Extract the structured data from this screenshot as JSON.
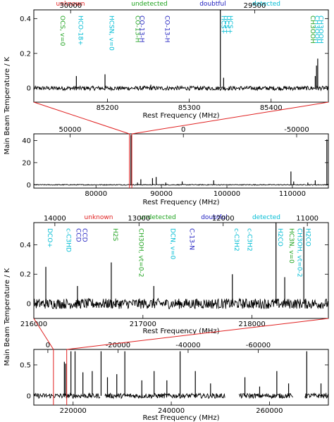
{
  "ylabel": "Main Beam Temperature / K",
  "xlabel": "Rest Frequency (MHz)",
  "legend": [
    {
      "text": "unknown",
      "color": "#e02020"
    },
    {
      "text": "undetected",
      "color": "#1fa31f"
    },
    {
      "text": "doubtful",
      "color": "#2020c0"
    },
    {
      "text": "detected",
      "color": "#00bcd4"
    }
  ],
  "chart_data": [
    {
      "type": "line",
      "panel": "band-1-zoom",
      "xlim": [
        85110,
        85470
      ],
      "ylim": [
        -0.08,
        0.45
      ],
      "xticks": [
        85200,
        85300,
        85400
      ],
      "yticks": [
        0,
        0.2,
        0.4
      ],
      "top_xlim": [
        30100,
        29300
      ],
      "top_xticks": [
        30000,
        29500
      ],
      "lines": [
        {
          "x": 85162,
          "y": 0.07
        },
        {
          "x": 85197,
          "y": 0.08
        },
        {
          "x": 85253,
          "y": 0.02
        },
        {
          "x": 85338,
          "y": 0.45
        },
        {
          "x": 85342,
          "y": 0.06
        },
        {
          "x": 85454,
          "y": 0.07
        },
        {
          "x": 85455.5,
          "y": 0.13
        },
        {
          "x": 85457,
          "y": 0.17
        }
      ],
      "annotations": [
        {
          "text": "OCS, v=0",
          "x": 85140,
          "color": "#1fa31f"
        },
        {
          "text": "HCO-18+",
          "x": 85162,
          "color": "#00bcd4"
        },
        {
          "text": "HCSN, v=0",
          "x": 85200,
          "color": "#00bcd4"
        },
        {
          "text": "CO-13-H",
          "x": 85232,
          "color": "#1fa31f"
        },
        {
          "text": "CO-13-H",
          "x": 85237,
          "color": "#2020c0"
        },
        {
          "text": "CO-13-H",
          "x": 85268,
          "color": "#2020c0"
        },
        {
          "text": "HCS+",
          "x": 85337,
          "color": "#00bcd4"
        },
        {
          "text": "HCS+",
          "x": 85341,
          "color": "#00bcd4"
        },
        {
          "text": "HCS+",
          "x": 85345,
          "color": "#00bcd4"
        },
        {
          "text": "CH3OOH",
          "x": 85446,
          "color": "#1fa31f"
        },
        {
          "text": "CH3OOH",
          "x": 85451,
          "color": "#00bcd4"
        },
        {
          "text": "CH3OOH",
          "x": 85456,
          "color": "#00bcd4"
        }
      ]
    },
    {
      "type": "line",
      "panel": "band-1-overview",
      "xlim": [
        70500,
        115500
      ],
      "ylim": [
        -3,
        46
      ],
      "xticks": [
        80000,
        90000,
        100000,
        110000
      ],
      "yticks": [
        0,
        20,
        40
      ],
      "top_xlim": [
        66000,
        -64000
      ],
      "top_xticks": [
        50000,
        0,
        -50000
      ],
      "lines": [
        {
          "x": 85338,
          "y": 45
        },
        {
          "x": 86340,
          "y": 2
        },
        {
          "x": 86850,
          "y": 5
        },
        {
          "x": 88630,
          "y": 6
        },
        {
          "x": 89190,
          "y": 7
        },
        {
          "x": 90660,
          "y": 2
        },
        {
          "x": 93170,
          "y": 3
        },
        {
          "x": 97980,
          "y": 4
        },
        {
          "x": 109780,
          "y": 12
        },
        {
          "x": 110200,
          "y": 3
        },
        {
          "x": 112360,
          "y": 2
        },
        {
          "x": 113500,
          "y": 4
        },
        {
          "x": 115270,
          "y": 41
        }
      ]
    },
    {
      "type": "line",
      "panel": "band-2-zoom",
      "xlim": [
        216000,
        218700
      ],
      "ylim": [
        -0.1,
        0.55
      ],
      "xticks": [
        216000,
        217000,
        218000
      ],
      "yticks": [
        0,
        0.2,
        0.4
      ],
      "top_xlim": [
        14250,
        10750
      ],
      "top_xticks": [
        14000,
        13000,
        12000,
        11000
      ],
      "lines": [
        {
          "x": 216110,
          "y": 0.25
        },
        {
          "x": 216400,
          "y": 0.12
        },
        {
          "x": 216710,
          "y": 0.28
        },
        {
          "x": 217100,
          "y": 0.12
        },
        {
          "x": 217820,
          "y": 0.2
        },
        {
          "x": 218220,
          "y": 0.55
        },
        {
          "x": 218300,
          "y": 0.18
        },
        {
          "x": 218475,
          "y": 0.52
        }
      ],
      "annotations": [
        {
          "text": "DCO+",
          "x": 216110,
          "color": "#00bcd4"
        },
        {
          "text": "c-C3HD",
          "x": 216280,
          "color": "#00bcd4"
        },
        {
          "text": "CCD",
          "x": 216373,
          "color": "#2020c0"
        },
        {
          "text": "CCD",
          "x": 216428,
          "color": "#2020c0"
        },
        {
          "text": "H2S",
          "x": 216710,
          "color": "#1fa31f"
        },
        {
          "text": "CH3OH, vt=0-2",
          "x": 216945,
          "color": "#1fa31f"
        },
        {
          "text": "DCN, v=0",
          "x": 217238,
          "color": "#00bcd4"
        },
        {
          "text": "C-13-N",
          "x": 217410,
          "color": "#2020c0"
        },
        {
          "text": "c-C3H2",
          "x": 217822,
          "color": "#00bcd4"
        },
        {
          "text": "c-C3H2",
          "x": 217940,
          "color": "#00bcd4"
        },
        {
          "text": "H2CO",
          "x": 218222,
          "color": "#00bcd4"
        },
        {
          "text": "HC3N, v=0",
          "x": 218325,
          "color": "#1fa31f"
        },
        {
          "text": "CH3OH, vt=0-2",
          "x": 218400,
          "color": "#00bcd4"
        },
        {
          "text": "H2CO",
          "x": 218476,
          "color": "#00bcd4"
        }
      ]
    },
    {
      "type": "line",
      "panel": "band-2-overview",
      "xlim": [
        212000,
        272000
      ],
      "ylim": [
        -0.15,
        0.75
      ],
      "xticks": [
        220000,
        240000,
        260000
      ],
      "yticks": [
        0,
        0.5
      ],
      "top_xlim": [
        4000,
        -80000
      ],
      "top_xticks": [
        0,
        -20000,
        -40000,
        -60000
      ],
      "segments": [
        [
          212000,
          225500
        ],
        [
          226500,
          251000
        ],
        [
          253800,
          264800
        ],
        [
          267200,
          272000
        ]
      ],
      "lines": [
        {
          "x": 218220,
          "y": 0.55
        },
        {
          "x": 218475,
          "y": 0.52
        },
        {
          "x": 219560,
          "y": 0.72
        },
        {
          "x": 220400,
          "y": 0.72
        },
        {
          "x": 222000,
          "y": 0.38
        },
        {
          "x": 223900,
          "y": 0.4
        },
        {
          "x": 225700,
          "y": 0.72
        },
        {
          "x": 227000,
          "y": 0.3
        },
        {
          "x": 228900,
          "y": 0.35
        },
        {
          "x": 230540,
          "y": 0.72
        },
        {
          "x": 234000,
          "y": 0.25
        },
        {
          "x": 236500,
          "y": 0.4
        },
        {
          "x": 239100,
          "y": 0.25
        },
        {
          "x": 241800,
          "y": 0.72
        },
        {
          "x": 244900,
          "y": 0.4
        },
        {
          "x": 248000,
          "y": 0.2
        },
        {
          "x": 255000,
          "y": 0.3
        },
        {
          "x": 258000,
          "y": 0.15
        },
        {
          "x": 261500,
          "y": 0.4
        },
        {
          "x": 263900,
          "y": 0.2
        },
        {
          "x": 267600,
          "y": 0.72
        },
        {
          "x": 270500,
          "y": 0.2
        }
      ]
    }
  ]
}
